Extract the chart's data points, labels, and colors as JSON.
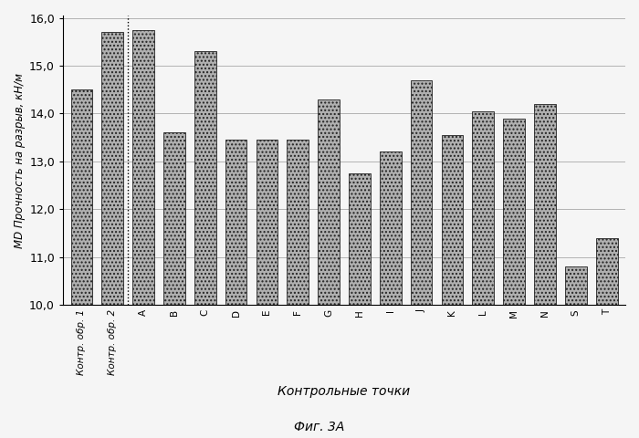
{
  "categories": [
    "Контр. обр. 1",
    "Контр. обр. 2",
    "A",
    "B",
    "C",
    "D",
    "E",
    "F",
    "G",
    "H",
    "I",
    "J",
    "K",
    "L",
    "M",
    "N",
    "S",
    "T"
  ],
  "values": [
    14.5,
    15.7,
    15.75,
    13.6,
    15.3,
    13.45,
    13.45,
    13.45,
    14.3,
    12.75,
    13.2,
    14.7,
    13.55,
    14.05,
    13.9,
    14.2,
    10.8,
    11.4
  ],
  "ylabel": "MD Прочность на разрыв, кН/м",
  "xlabel": "Контрольные точки",
  "caption": "Фиг. 3А",
  "ylim_min": 10.0,
  "ylim_max": 16.0,
  "yticks": [
    10.0,
    11.0,
    12.0,
    13.0,
    14.0,
    15.0,
    16.0
  ],
  "bar_color": "#b0b0b0",
  "bar_edgecolor": "#222222",
  "bar_hatch": "....",
  "background_color": "#f5f5f5",
  "dashed_line_x": 1.5,
  "fig_width": 7.0,
  "fig_height": 4.8,
  "dpi": 100
}
